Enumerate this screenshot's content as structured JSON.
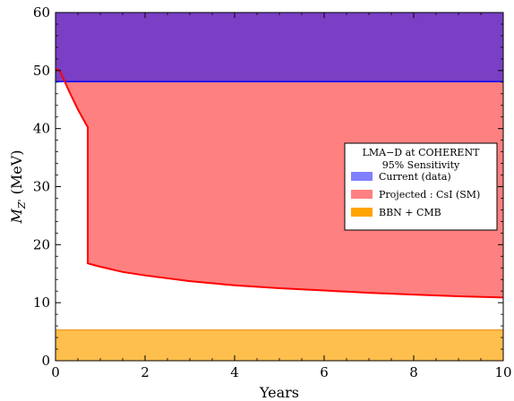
{
  "chart_data": {
    "type": "area",
    "xlabel": "Years",
    "ylabel_main": "M",
    "ylabel_sub": "Z'",
    "ylabel_unit": " (MeV)",
    "xlim": [
      0,
      10
    ],
    "ylim": [
      0,
      60
    ],
    "x_ticks": [
      "0",
      "2",
      "4",
      "6",
      "8",
      "10"
    ],
    "y_ticks": [
      "0",
      "10",
      "20",
      "30",
      "40",
      "50",
      "60"
    ],
    "grid": false,
    "legend": {
      "placement": "right",
      "title_line1": "LMA−D at COHERENT",
      "title_line2": "95% Sensitivity"
    },
    "series": [
      {
        "name": "Current (data)",
        "color": "#7a3fc4",
        "legend_color": "#8080ff",
        "edge_color": "#0000ff",
        "band": [
          48.1,
          60
        ]
      },
      {
        "name": "Projected :  CsI (SM)",
        "color": "#ff8080",
        "legend_color": "#ff8080",
        "edge_color": "#ff0000",
        "upper": 48.1,
        "lower_curve": {
          "x": [
            0,
            0.05,
            0.1,
            0.2,
            0.3,
            0.4,
            0.5,
            0.6,
            0.7,
            0.72,
            0.72,
            0.75,
            1.0,
            1.5,
            2,
            3,
            4,
            5,
            6,
            7,
            8,
            9,
            10
          ],
          "y": [
            50.2,
            50.2,
            49.9,
            48.2,
            46.5,
            44.9,
            43.3,
            41.9,
            40.5,
            40.3,
            16.8,
            16.7,
            16.2,
            15.3,
            14.7,
            13.7,
            13.0,
            12.5,
            12.1,
            11.7,
            11.4,
            11.1,
            10.9
          ]
        }
      },
      {
        "name": "BBN + CMB",
        "color": "#ffbf4d",
        "legend_color": "#ffa500",
        "edge_color": "#f0a030",
        "band": [
          0,
          5.3
        ]
      }
    ]
  }
}
